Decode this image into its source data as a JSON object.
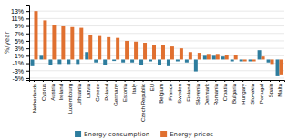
{
  "chart_data": {
    "type": "bar",
    "categories": [
      "Netherlands",
      "Cyprus",
      "Austria",
      "Ireland",
      "Luxembourg",
      "Lithuania",
      "Latvia",
      "Greece",
      "Poland",
      "Germany",
      "Estonia",
      "Italy",
      "Czech Republic",
      "EU",
      "Belgium",
      "France",
      "Sweden",
      "Finland",
      "Slovenia",
      "Denmark",
      "Romania",
      "Croatia",
      "Bulgaria",
      "Hungary",
      "Slovakia",
      "Portugal",
      "Spain",
      "Malta"
    ],
    "series": [
      {
        "name": "Energy consumption",
        "color": "#2e7d9e",
        "values": [
          -1.8,
          1.0,
          -1.5,
          -1.2,
          -1.2,
          -1.2,
          2.0,
          -0.8,
          -1.5,
          -0.4,
          -0.8,
          -0.8,
          -1.5,
          -0.5,
          -1.5,
          -1.8,
          -0.5,
          -0.8,
          -3.2,
          1.0,
          1.0,
          0.8,
          -0.5,
          -0.5,
          -0.5,
          2.5,
          -0.8,
          -4.5
        ]
      },
      {
        "name": "Energy prices",
        "color": "#e07030",
        "values": [
          13.0,
          10.5,
          9.2,
          8.9,
          8.7,
          8.5,
          6.5,
          6.3,
          6.0,
          5.8,
          5.0,
          4.8,
          4.5,
          4.0,
          3.8,
          3.5,
          3.0,
          2.0,
          1.8,
          1.5,
          1.5,
          1.2,
          1.2,
          -0.5,
          -0.5,
          0.8,
          -1.2,
          -4.0
        ]
      }
    ],
    "ylabel": "%/year",
    "ylim": [
      -5.5,
      14.5
    ],
    "yticks": [
      {
        "value": -5,
        "label": "-5%"
      },
      {
        "value": -3,
        "label": "-3%"
      },
      {
        "value": -1,
        "label": "-1%"
      },
      {
        "value": 1,
        "label": "1%"
      },
      {
        "value": 3,
        "label": "3%"
      },
      {
        "value": 5,
        "label": "5%"
      },
      {
        "value": 7,
        "label": "7%"
      },
      {
        "value": 9,
        "label": "9%"
      },
      {
        "value": 11,
        "label": "11%"
      },
      {
        "value": 13,
        "label": "13%"
      }
    ],
    "grid": true,
    "legend": "bottom"
  }
}
